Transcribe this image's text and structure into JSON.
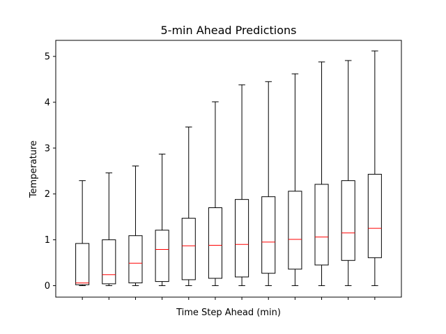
{
  "chart_data": {
    "type": "box",
    "title": "5-min Ahead Predictions",
    "xlabel": "Time Step Ahead (min)",
    "ylabel": "Temperature",
    "ylim": [
      -0.25,
      5.35
    ],
    "yticks": [
      0,
      1,
      2,
      3,
      4,
      5
    ],
    "xtick_labels_visible": false,
    "grid": false,
    "colors": {
      "box": "#000000",
      "median": "#ff0000"
    },
    "boxes": [
      {
        "whisker_low": 0.0,
        "q1": 0.02,
        "median": 0.06,
        "q3": 0.92,
        "whisker_high": 2.29
      },
      {
        "whisker_low": 0.0,
        "q1": 0.04,
        "median": 0.24,
        "q3": 1.0,
        "whisker_high": 2.46
      },
      {
        "whisker_low": 0.0,
        "q1": 0.06,
        "median": 0.49,
        "q3": 1.09,
        "whisker_high": 2.61
      },
      {
        "whisker_low": 0.0,
        "q1": 0.09,
        "median": 0.79,
        "q3": 1.21,
        "whisker_high": 2.87
      },
      {
        "whisker_low": 0.0,
        "q1": 0.13,
        "median": 0.87,
        "q3": 1.47,
        "whisker_high": 3.46
      },
      {
        "whisker_low": 0.0,
        "q1": 0.16,
        "median": 0.88,
        "q3": 1.7,
        "whisker_high": 4.01
      },
      {
        "whisker_low": 0.0,
        "q1": 0.19,
        "median": 0.9,
        "q3": 1.88,
        "whisker_high": 4.38
      },
      {
        "whisker_low": 0.0,
        "q1": 0.27,
        "median": 0.95,
        "q3": 1.94,
        "whisker_high": 4.45
      },
      {
        "whisker_low": 0.0,
        "q1": 0.36,
        "median": 1.01,
        "q3": 2.06,
        "whisker_high": 4.62
      },
      {
        "whisker_low": 0.0,
        "q1": 0.45,
        "median": 1.06,
        "q3": 2.21,
        "whisker_high": 4.88
      },
      {
        "whisker_low": 0.0,
        "q1": 0.55,
        "median": 1.15,
        "q3": 2.29,
        "whisker_high": 4.91
      },
      {
        "whisker_low": 0.0,
        "q1": 0.61,
        "median": 1.25,
        "q3": 2.43,
        "whisker_high": 5.12
      }
    ]
  }
}
